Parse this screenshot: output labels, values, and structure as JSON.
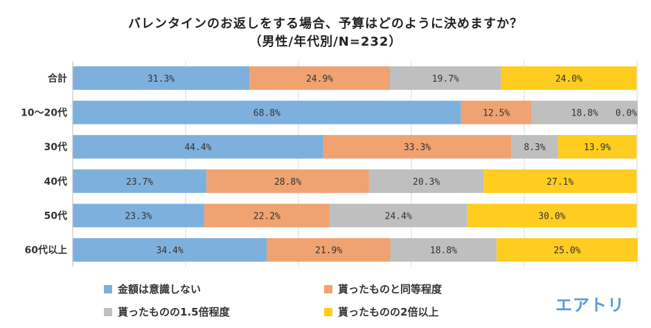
{
  "chart_data": {
    "type": "bar",
    "orientation": "horizontal",
    "stacked": "percent",
    "title": "バレンタインのお返しをする場合、予算はどのように決めますか？",
    "subtitle": "（男性/年代別/N=232）",
    "categories": [
      "合計",
      "10～20代",
      "30代",
      "40代",
      "50代",
      "60代以上"
    ],
    "series": [
      {
        "name": "金額は意識しない",
        "color": "#7eb0dd",
        "values": [
          31.3,
          68.8,
          44.4,
          23.7,
          23.3,
          34.4
        ],
        "labels": [
          "31.3%",
          "68.8%",
          "44.4%",
          "23.7%",
          "23.3%",
          "34.4%"
        ]
      },
      {
        "name": "貰ったものと同等程度",
        "color": "#f0a271",
        "values": [
          24.9,
          12.5,
          33.3,
          28.8,
          22.2,
          21.9
        ],
        "labels": [
          "24.9%",
          "12.5%",
          "33.3%",
          "28.8%",
          "22.2%",
          "21.9%"
        ]
      },
      {
        "name": "貰ったものの1.5倍程度",
        "color": "#bfbfbf",
        "values": [
          19.7,
          18.8,
          8.3,
          20.3,
          24.4,
          18.8
        ],
        "labels": [
          "19.7%",
          "18.8%",
          "8.3%",
          "20.3%",
          "24.4%",
          "18.8%"
        ]
      },
      {
        "name": "貰ったものの2倍以上",
        "color": "#ffcd1f",
        "values": [
          24.0,
          0.0,
          13.9,
          27.1,
          30.0,
          25.0
        ],
        "labels": [
          "24.0%",
          "0.0%",
          "13.9%",
          "27.1%",
          "30.0%",
          "25.0%"
        ]
      }
    ],
    "xlim": [
      0,
      100
    ],
    "grid": true,
    "legend_position": "bottom"
  },
  "legend": {
    "items": [
      "金額は意識しない",
      "貰ったものと同等程度",
      "貰ったものの1.5倍程度",
      "貰ったものの2倍以上"
    ]
  },
  "brand": {
    "logo_text": "エアトリ"
  }
}
